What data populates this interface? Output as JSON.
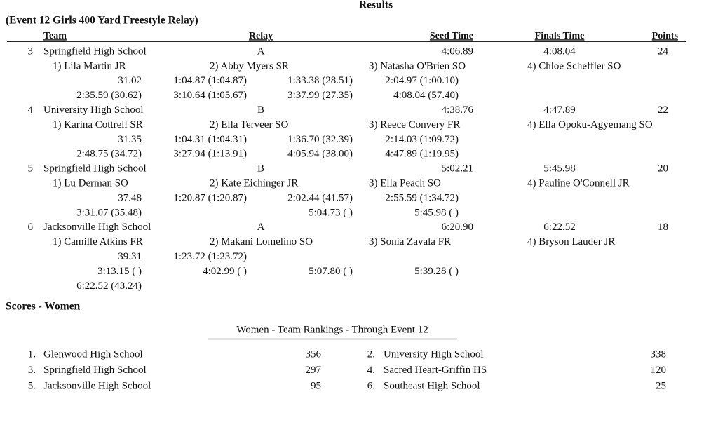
{
  "header": {
    "title": "Results"
  },
  "event": {
    "title": "(Event 12  Girls 400 Yard Freestyle Relay)",
    "columns": [
      "Team",
      "Relay",
      "Seed Time",
      "Finals Time",
      "Points"
    ],
    "entries": [
      {
        "place": "3",
        "team": "Springfield High School",
        "relay": "A",
        "seed": "4:06.89",
        "finals": "4:08.04",
        "points": "24",
        "swimmers": [
          "1) Lila Martin JR",
          "2) Abby Myers SR",
          "3) Natasha O'Brien SO",
          "4) Chloe Scheffler SO"
        ],
        "splits": [
          [
            "31.02",
            "1:04.87 (1:04.87)",
            "1:33.38 (28.51)",
            "2:04.97 (1:00.10)"
          ],
          [
            "2:35.59 (30.62)",
            "3:10.64 (1:05.67)",
            "3:37.99 (27.35)",
            "4:08.04 (57.40)"
          ]
        ]
      },
      {
        "place": "4",
        "team": "University High School",
        "relay": "B",
        "seed": "4:38.76",
        "finals": "4:47.89",
        "points": "22",
        "swimmers": [
          "1) Karina Cottrell SR",
          "2) Ella Terveer SO",
          "3) Reece Convery FR",
          "4) Ella Opoku-Agyemang SO"
        ],
        "splits": [
          [
            "31.35",
            "1:04.31 (1:04.31)",
            "1:36.70 (32.39)",
            "2:14.03 (1:09.72)"
          ],
          [
            "2:48.75 (34.72)",
            "3:27.94 (1:13.91)",
            "4:05.94 (38.00)",
            "4:47.89 (1:19.95)"
          ]
        ]
      },
      {
        "place": "5",
        "team": "Springfield High School",
        "relay": "B",
        "seed": "5:02.21",
        "finals": "5:45.98",
        "points": "20",
        "swimmers": [
          "1) Lu Derman SO",
          "2) Kate Eichinger JR",
          "3) Ella Peach SO",
          "4) Pauline O'Connell JR"
        ],
        "splits": [
          [
            "37.48",
            "1:20.87 (1:20.87)",
            "2:02.44 (41.57)",
            "2:55.59 (1:34.72)"
          ],
          [
            "3:31.07 (35.48)",
            null,
            "5:04.73 ( )",
            "5:45.98 ( )"
          ]
        ]
      },
      {
        "place": "6",
        "team": "Jacksonville High School",
        "relay": "A",
        "seed": "6:20.90",
        "finals": "6:22.52",
        "points": "18",
        "swimmers": [
          "1) Camille Atkins FR",
          "2) Makani Lomelino SO",
          "3) Sonia Zavala FR",
          "4) Bryson Lauder JR"
        ],
        "splits": [
          [
            "39.31",
            "1:23.72 (1:23.72)",
            null,
            null
          ],
          [
            "3:13.15 ( )",
            "4:02.99 ( )",
            "5:07.80 ( )",
            "5:39.28 ( )"
          ],
          [
            "6:22.52 (43.24)",
            null,
            null,
            null
          ]
        ]
      }
    ]
  },
  "scores": {
    "title": "Scores - Women",
    "rankings_title": "Women - Team Rankings - Through Event 12",
    "rankings": [
      {
        "place": "1.",
        "team": "Glenwood High School",
        "points": "356"
      },
      {
        "place": "2.",
        "team": "University High School",
        "points": "338"
      },
      {
        "place": "3.",
        "team": "Springfield High School",
        "points": "297"
      },
      {
        "place": "4.",
        "team": "Sacred Heart-Griffin HS",
        "points": "120"
      },
      {
        "place": "5.",
        "team": "Jacksonville High School",
        "points": "95"
      },
      {
        "place": "6.",
        "team": "Southeast High School",
        "points": "25"
      }
    ]
  }
}
